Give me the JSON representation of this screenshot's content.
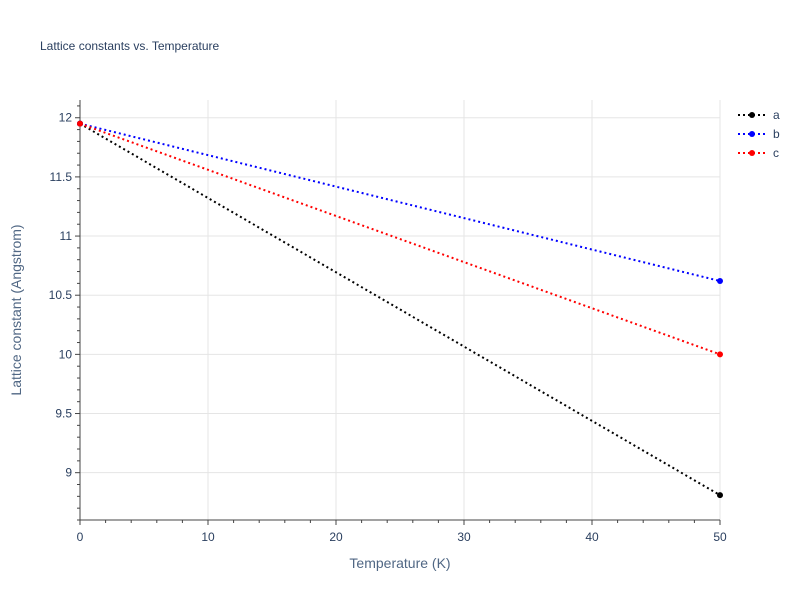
{
  "chart_data": {
    "type": "line",
    "title": "Lattice constants vs. Temperature",
    "xlabel": "Temperature (K)",
    "ylabel": "Lattice constant (Angstrom)",
    "xlim": [
      0,
      50
    ],
    "ylim": [
      8.6,
      12.15
    ],
    "xticks": [
      0,
      10,
      20,
      30,
      40,
      50
    ],
    "yticks": [
      9,
      9.5,
      10,
      10.5,
      11,
      11.5,
      12
    ],
    "grid": true,
    "legend_position": "top-right",
    "x": [
      0,
      50
    ],
    "series": [
      {
        "name": "a",
        "color": "#000000",
        "values": [
          11.95,
          8.81
        ]
      },
      {
        "name": "b",
        "color": "#0000ff",
        "values": [
          11.95,
          10.62
        ]
      },
      {
        "name": "c",
        "color": "#ff0000",
        "values": [
          11.95,
          10.0
        ]
      }
    ]
  }
}
